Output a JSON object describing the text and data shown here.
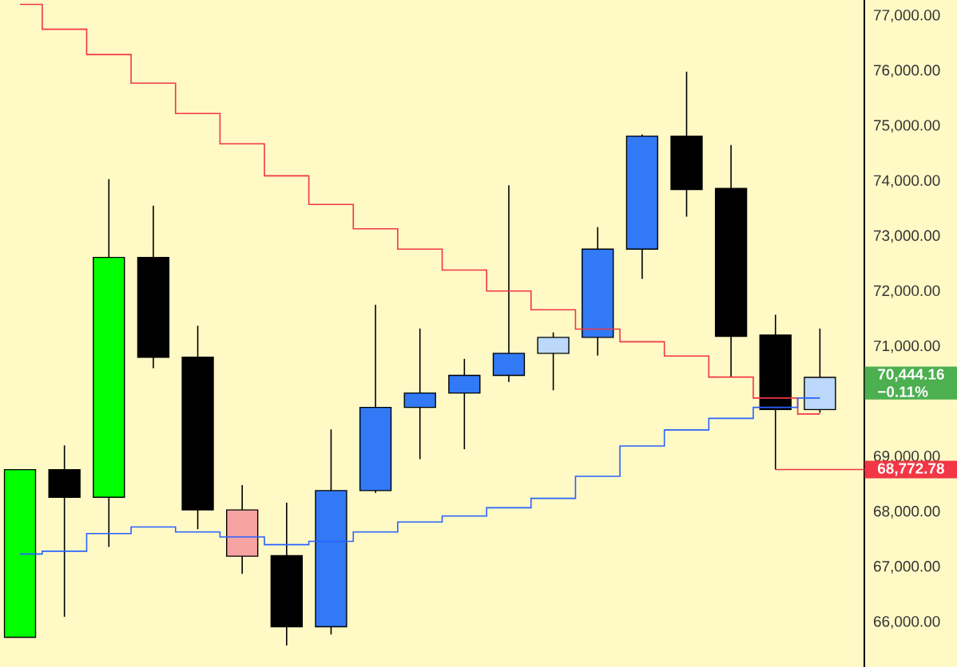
{
  "chart_data": {
    "type": "candlestick",
    "categories": [
      null,
      null,
      null,
      null,
      null,
      null,
      null,
      null,
      null,
      null,
      null,
      null,
      null,
      null,
      null,
      null,
      null,
      null,
      null
    ],
    "ohlc": [
      [
        65730,
        68770,
        65730,
        68770
      ],
      [
        68770,
        69210,
        66100,
        68270
      ],
      [
        68270,
        74040,
        67370,
        72620
      ],
      [
        72620,
        73560,
        70610,
        70810
      ],
      [
        70810,
        71380,
        67690,
        68040
      ],
      [
        68040,
        68490,
        66880,
        67200
      ],
      [
        67210,
        68170,
        65580,
        65920
      ],
      [
        65920,
        69500,
        65780,
        68390
      ],
      [
        68390,
        71760,
        68350,
        69900
      ],
      [
        69900,
        71330,
        68960,
        70160
      ],
      [
        70160,
        70780,
        69140,
        70480
      ],
      [
        70480,
        73930,
        70360,
        70880
      ],
      [
        70880,
        71260,
        70210,
        71170
      ],
      [
        71170,
        73170,
        70840,
        72770
      ],
      [
        72770,
        74850,
        72230,
        74820
      ],
      [
        74820,
        75990,
        73360,
        73850
      ],
      [
        73870,
        74660,
        70450,
        71190
      ],
      [
        71210,
        71580,
        68772.78,
        69860
      ],
      [
        69860,
        71330,
        69800,
        70444.16
      ]
    ],
    "colors": [
      "#00ff00",
      "#000000",
      "#00ff00",
      "#000000",
      "#000000",
      "#f7a3a3",
      "#000000",
      "#3179f5",
      "#3179f5",
      "#3179f5",
      "#3179f5",
      "#3179f5",
      "#bcd8fa",
      "#3179f5",
      "#3179f5",
      "#000000",
      "#000000",
      "#000000",
      "#bcd8fa"
    ],
    "series": [
      {
        "type": "step",
        "color": "#f23645",
        "values": [
          77210,
          76760,
          76300,
          75780,
          75230,
          74680,
          74100,
          73580,
          73140,
          72770,
          72390,
          72010,
          71670,
          71320,
          71090,
          70830,
          70450,
          70070,
          69780
        ]
      },
      {
        "type": "step",
        "color": "#2962ff",
        "values": [
          67240,
          67290,
          67610,
          67730,
          67640,
          67550,
          67410,
          67470,
          67640,
          67820,
          67930,
          68080,
          68250,
          68650,
          69200,
          69490,
          69700,
          69900,
          70070
        ]
      }
    ],
    "ylim": [
      65190,
      77290
    ],
    "yticks": [
      {
        "value": 66000,
        "label": "66,000.00"
      },
      {
        "value": 67000,
        "label": "67,000.00"
      },
      {
        "value": 68000,
        "label": "68,000.00"
      },
      {
        "value": 69000,
        "label": "69,000.00"
      },
      {
        "value": 71000,
        "label": "71,000.00"
      },
      {
        "value": 72000,
        "label": "72,000.00"
      },
      {
        "value": 73000,
        "label": "73,000.00"
      },
      {
        "value": 74000,
        "label": "74,000.00"
      },
      {
        "value": 75000,
        "label": "75,000.00"
      },
      {
        "value": 76000,
        "label": "76,000.00"
      },
      {
        "value": 77000,
        "label": "77,000.00"
      }
    ],
    "ref_lines": [
      {
        "axis": "y",
        "value": 68772.78,
        "label": "68,772.78",
        "color": "#f23645"
      }
    ],
    "annotations": [
      "70,444.16",
      "−0.11%"
    ],
    "tick_labels": "y"
  }
}
